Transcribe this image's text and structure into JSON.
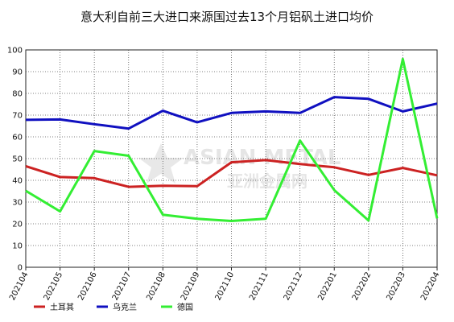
{
  "chart_data": {
    "type": "line",
    "title": "意大利自前三大进口来源国过去13个月铝矾土进口均价",
    "categories": [
      "202104",
      "202105",
      "202106",
      "202107",
      "202108",
      "202109",
      "202110",
      "202111",
      "202112",
      "202201",
      "202202",
      "202203",
      "202204"
    ],
    "ylim": [
      0,
      100
    ],
    "yticks": [
      0,
      10,
      20,
      30,
      40,
      50,
      60,
      70,
      80,
      90,
      100
    ],
    "grid": true,
    "legend_position": "bottom-left",
    "series": [
      {
        "name": "土耳其",
        "color": "#cc2222",
        "values": [
          46.5,
          41.5,
          41.0,
          37.0,
          37.5,
          37.3,
          48.3,
          49.3,
          47.5,
          46.0,
          42.5,
          45.7,
          42.3
        ]
      },
      {
        "name": "乌克兰",
        "color": "#1010c0",
        "values": [
          67.8,
          68.0,
          65.8,
          63.8,
          72.0,
          66.7,
          71.0,
          71.7,
          71.0,
          78.3,
          77.5,
          71.7,
          75.3
        ]
      },
      {
        "name": "德国",
        "color": "#33ee33",
        "values": [
          35.2,
          25.7,
          53.5,
          51.3,
          24.2,
          22.3,
          21.3,
          22.3,
          58.3,
          35.5,
          21.5,
          95.8,
          22.5
        ]
      }
    ]
  },
  "watermark": {
    "line1": "ASIAN METAL",
    "line2": "亚洲金属网"
  }
}
